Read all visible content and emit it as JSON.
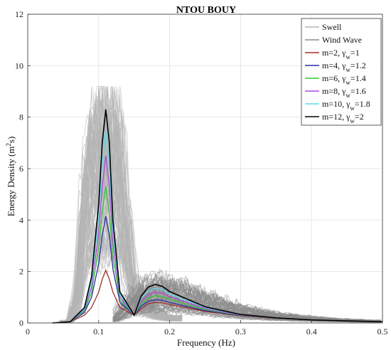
{
  "chart_data": {
    "type": "line",
    "title": "NTOU BOUY",
    "xlabel": "Frequency (Hz)",
    "ylabel_prefix": "Energy Density (m",
    "ylabel_sup": "2",
    "ylabel_suffix": "s)",
    "xlim": [
      0,
      0.5
    ],
    "ylim": [
      0,
      12
    ],
    "xticks": [
      0,
      0.1,
      0.2,
      0.3,
      0.4,
      0.5
    ],
    "xtick_labels": [
      "0",
      "0.1",
      "0.2",
      "0.3",
      "0.4",
      "0.5"
    ],
    "yticks": [
      0,
      2,
      4,
      6,
      8,
      10,
      12
    ],
    "ytick_labels": [
      "0",
      "2",
      "4",
      "6",
      "8",
      "10",
      "12"
    ],
    "grid": true,
    "legend_position": "top-right",
    "colors": {
      "swell": "#b4b4b4",
      "wind_wave": "#8c8c8c"
    },
    "background_ensembles": [
      {
        "name": "Swell",
        "color": "#b4b4b4",
        "representative_envelope": {
          "x": [
            0.06,
            0.07,
            0.08,
            0.09,
            0.1,
            0.11,
            0.12,
            0.13,
            0.14,
            0.15,
            0.16,
            0.18,
            0.2
          ],
          "y": [
            0.1,
            1.5,
            6.5,
            8.7,
            9.0,
            9.1,
            9.0,
            8.6,
            5.0,
            2.0,
            1.2,
            0.6,
            0.3
          ]
        }
      },
      {
        "name": "Wind Wave",
        "color": "#8c8c8c",
        "representative_envelope": {
          "x": [
            0.12,
            0.14,
            0.16,
            0.18,
            0.2,
            0.25,
            0.3,
            0.35,
            0.4,
            0.45,
            0.5
          ],
          "y": [
            0.2,
            1.0,
            1.6,
            1.85,
            1.8,
            1.2,
            0.7,
            0.4,
            0.25,
            0.15,
            0.1
          ]
        }
      }
    ],
    "series": [
      {
        "name_prefix": "m=2, ",
        "gamma_value": "=1",
        "color": "#a0302a",
        "x": [
          0.035,
          0.06,
          0.08,
          0.09,
          0.1,
          0.105,
          0.11,
          0.115,
          0.12,
          0.13,
          0.15,
          0.16,
          0.17,
          0.18,
          0.19,
          0.2,
          0.25,
          0.3,
          0.35,
          0.4,
          0.45,
          0.5
        ],
        "y": [
          0,
          0.05,
          0.3,
          0.6,
          1.2,
          1.7,
          2.05,
          1.7,
          1.2,
          0.6,
          0.3,
          0.55,
          0.75,
          0.8,
          0.78,
          0.72,
          0.45,
          0.28,
          0.18,
          0.12,
          0.08,
          0.05
        ]
      },
      {
        "name_prefix": "m=4, ",
        "gamma_value": "=1.2",
        "color": "#2a2e9e",
        "x": [
          0.035,
          0.06,
          0.08,
          0.09,
          0.1,
          0.105,
          0.11,
          0.115,
          0.12,
          0.13,
          0.15,
          0.16,
          0.17,
          0.18,
          0.19,
          0.2,
          0.25,
          0.3,
          0.35,
          0.4,
          0.45,
          0.5
        ],
        "y": [
          0,
          0.05,
          0.4,
          1.0,
          2.3,
          3.4,
          4.15,
          3.4,
          2.1,
          0.8,
          0.3,
          0.65,
          0.85,
          0.9,
          0.88,
          0.8,
          0.48,
          0.29,
          0.19,
          0.12,
          0.08,
          0.05
        ]
      },
      {
        "name_prefix": "m=6, ",
        "gamma_value": "=1.4",
        "color": "#3ac43a",
        "x": [
          0.035,
          0.06,
          0.08,
          0.09,
          0.1,
          0.105,
          0.11,
          0.115,
          0.12,
          0.13,
          0.15,
          0.16,
          0.17,
          0.18,
          0.19,
          0.2,
          0.25,
          0.3,
          0.35,
          0.4,
          0.45,
          0.5
        ],
        "y": [
          0,
          0.05,
          0.45,
          1.2,
          2.9,
          4.3,
          5.3,
          4.3,
          2.6,
          0.9,
          0.3,
          0.75,
          0.98,
          1.05,
          1.02,
          0.92,
          0.52,
          0.3,
          0.19,
          0.12,
          0.08,
          0.05
        ]
      },
      {
        "name_prefix": "m=8, ",
        "gamma_value": "=1.6",
        "color": "#b04ad8",
        "x": [
          0.035,
          0.06,
          0.08,
          0.09,
          0.1,
          0.105,
          0.11,
          0.115,
          0.12,
          0.13,
          0.15,
          0.16,
          0.17,
          0.18,
          0.19,
          0.2,
          0.25,
          0.3,
          0.35,
          0.4,
          0.45,
          0.5
        ],
        "y": [
          0,
          0.05,
          0.5,
          1.4,
          3.5,
          5.3,
          6.5,
          5.3,
          3.1,
          1.0,
          0.3,
          0.85,
          1.1,
          1.2,
          1.16,
          1.02,
          0.56,
          0.31,
          0.2,
          0.12,
          0.08,
          0.05
        ]
      },
      {
        "name_prefix": "m=10, ",
        "gamma_value": "=1.8",
        "color": "#5ed8e8",
        "x": [
          0.035,
          0.06,
          0.08,
          0.09,
          0.1,
          0.105,
          0.11,
          0.115,
          0.12,
          0.13,
          0.15,
          0.16,
          0.17,
          0.18,
          0.19,
          0.2,
          0.25,
          0.3,
          0.35,
          0.4,
          0.45,
          0.5
        ],
        "y": [
          0,
          0.05,
          0.55,
          1.6,
          4.1,
          6.2,
          7.5,
          6.2,
          3.6,
          1.1,
          0.3,
          0.95,
          1.25,
          1.35,
          1.3,
          1.12,
          0.6,
          0.32,
          0.2,
          0.12,
          0.08,
          0.05
        ]
      },
      {
        "name_prefix": "m=12, ",
        "gamma_value": "=2",
        "color": "#000000",
        "x": [
          0.035,
          0.06,
          0.08,
          0.09,
          0.1,
          0.105,
          0.11,
          0.115,
          0.12,
          0.13,
          0.15,
          0.16,
          0.17,
          0.18,
          0.19,
          0.2,
          0.25,
          0.3,
          0.35,
          0.4,
          0.45,
          0.5
        ],
        "y": [
          0,
          0.05,
          0.6,
          1.8,
          4.6,
          7.0,
          8.3,
          7.0,
          4.0,
          1.2,
          0.3,
          1.05,
          1.4,
          1.5,
          1.42,
          1.22,
          0.63,
          0.33,
          0.2,
          0.12,
          0.08,
          0.05
        ]
      }
    ],
    "legend": [
      {
        "label": "Swell",
        "color": "#b4b4b4",
        "gamma": false
      },
      {
        "label": "Wind Wave",
        "color": "#8c8c8c",
        "gamma": false
      },
      {
        "label": "m=2, ",
        "gamma_value": "=1",
        "color": "#a0302a",
        "gamma": true
      },
      {
        "label": "m=4, ",
        "gamma_value": "=1.2",
        "color": "#2a2e9e",
        "gamma": true
      },
      {
        "label": "m=6, ",
        "gamma_value": "=1.4",
        "color": "#3ac43a",
        "gamma": true
      },
      {
        "label": "m=8, ",
        "gamma_value": "=1.6",
        "color": "#b04ad8",
        "gamma": true
      },
      {
        "label": "m=10, ",
        "gamma_value": "=1.8",
        "color": "#5ed8e8",
        "gamma": true
      },
      {
        "label": "m=12, ",
        "gamma_value": "=2",
        "color": "#000000",
        "gamma": true
      }
    ],
    "gamma_symbol": "γ",
    "gamma_subscript": "w"
  }
}
